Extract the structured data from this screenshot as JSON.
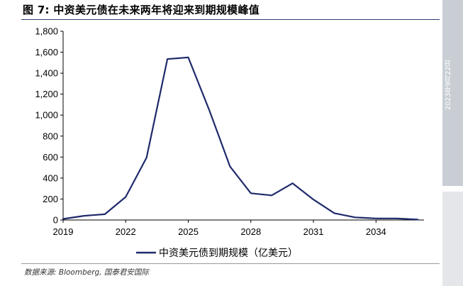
{
  "figure": {
    "title": "图 7:  中资美元债在未来两年将迎来到期规模峰值",
    "source": "数据来源: Bloomberg, 国泰君安国际",
    "side_date": "2023年9月22日"
  },
  "colors": {
    "series_line": "#1f2a6b",
    "title_rule": "#243f74",
    "side_strip": "#c9ced5"
  },
  "chart_data": {
    "type": "line",
    "title": "",
    "xlabel": "",
    "ylabel": "",
    "x": [
      2019,
      2020,
      2021,
      2022,
      2023,
      2024,
      2025,
      2026,
      2027,
      2028,
      2029,
      2030,
      2031,
      2032,
      2033,
      2034,
      2035,
      2036
    ],
    "x_ticks": [
      "2019",
      "2022",
      "2025",
      "2028",
      "2031",
      "2034"
    ],
    "x_tick_values": [
      2019,
      2022,
      2025,
      2028,
      2031,
      2034
    ],
    "xlim": [
      2019,
      2036.3
    ],
    "ylim": [
      0,
      1800
    ],
    "y_ticks": [
      "0",
      "200",
      "400",
      "600",
      "800",
      "1,000",
      "1,200",
      "1,400",
      "1,600",
      "1,800"
    ],
    "y_tick_values": [
      0,
      200,
      400,
      600,
      800,
      1000,
      1200,
      1400,
      1600,
      1800
    ],
    "grid": false,
    "legend_position": "bottom-center",
    "series": [
      {
        "name": "中资美元债到期规模（亿美元）",
        "values": [
          10,
          40,
          55,
          220,
          595,
          1535,
          1550,
          1050,
          510,
          255,
          235,
          350,
          195,
          65,
          25,
          15,
          15,
          5
        ]
      }
    ]
  }
}
